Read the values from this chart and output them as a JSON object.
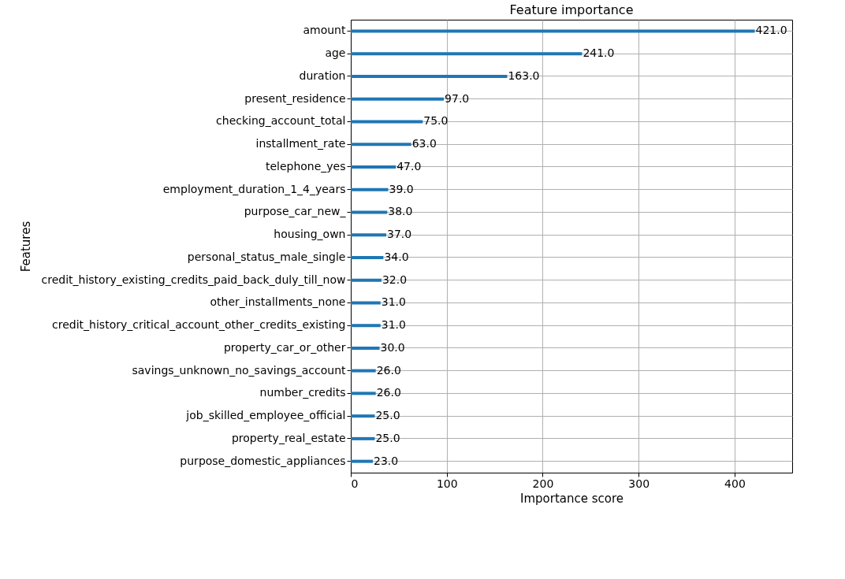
{
  "chart_data": {
    "type": "bar",
    "orientation": "horizontal",
    "title": "Feature importance",
    "xlabel": "Importance score",
    "ylabel": "Features",
    "categories": [
      "amount",
      "age",
      "duration",
      "present_residence",
      "checking_account_total",
      "installment_rate",
      "telephone_yes",
      "employment_duration_1_4_years",
      "purpose_car_new_",
      "housing_own",
      "personal_status_male_single",
      "credit_history_existing_credits_paid_back_duly_till_now",
      "other_installments_none",
      "credit_history_critical_account_other_credits_existing",
      "property_car_or_other",
      "savings_unknown_no_savings_account",
      "number_credits",
      "job_skilled_employee_official",
      "property_real_estate",
      "purpose_domestic_appliances"
    ],
    "values": [
      421,
      241,
      163,
      97,
      75,
      63,
      47,
      39,
      38,
      37,
      34,
      32,
      31,
      31,
      30,
      26,
      26,
      25,
      25,
      23
    ],
    "value_labels": [
      "421.0",
      "241.0",
      "163.0",
      "97.0",
      "75.0",
      "63.0",
      "47.0",
      "39.0",
      "38.0",
      "37.0",
      "34.0",
      "32.0",
      "31.0",
      "31.0",
      "30.0",
      "26.0",
      "26.0",
      "25.0",
      "25.0",
      "23.0"
    ],
    "color": "#1f77b4",
    "xlim": [
      0,
      460
    ],
    "xticks": [
      0,
      100,
      200,
      300,
      400
    ],
    "grid": true
  }
}
